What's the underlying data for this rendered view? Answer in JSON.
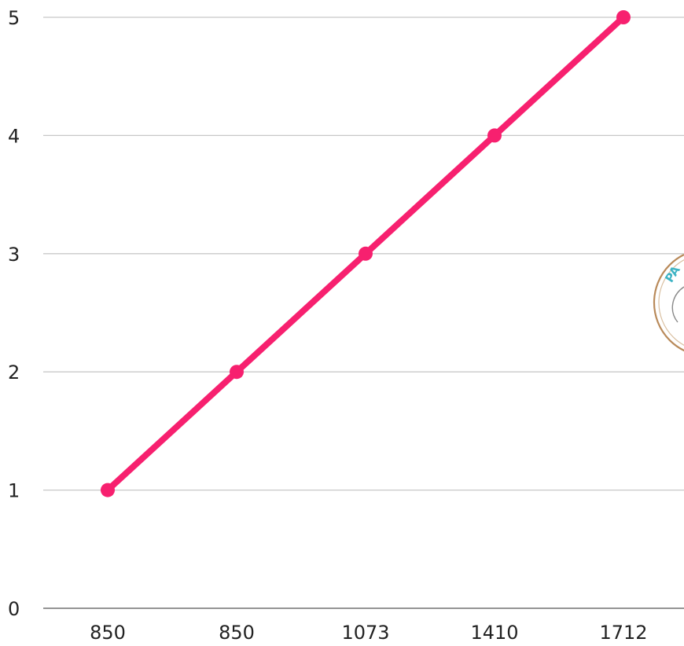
{
  "chart_data": {
    "type": "line",
    "title": "",
    "xlabel": "",
    "ylabel": "",
    "categories": [
      "850",
      "850",
      "1073",
      "1410",
      "1712"
    ],
    "series": [
      {
        "values": [
          1,
          2,
          3,
          4,
          5
        ],
        "color": "#f7206f"
      }
    ],
    "ylim": [
      0,
      5
    ],
    "yticks": [
      "0",
      "1",
      "2",
      "3",
      "4",
      "5"
    ],
    "grid": true,
    "legend": "none"
  },
  "watermark": {
    "text": "PA",
    "ring_color": "#b98a5a",
    "text_color": "#3db3c4"
  }
}
